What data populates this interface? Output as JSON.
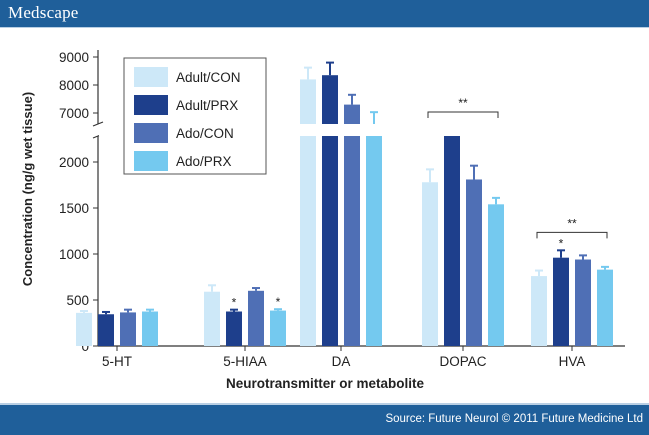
{
  "brand": "Medscape",
  "credit": "Source: Future Neurol © 2011 Future Medicine Ltd",
  "colors": {
    "brand_bar": "#1f5f9a",
    "adult_con": "#cde8f8",
    "adult_prx": "#1e3f8c",
    "ado_con": "#4f6fb5",
    "ado_prx": "#74c9ef"
  },
  "chart_data": {
    "type": "bar",
    "title": "",
    "xlabel": "Neurotransmitter or metabolite",
    "ylabel": "Concentration (ng/g wet tissue)",
    "categories": [
      "5-HT",
      "5-HIAA",
      "DA",
      "DOPAC",
      "HVA"
    ],
    "axis_break": {
      "lower_range": [
        0,
        2000
      ],
      "upper_range": [
        7000,
        9000
      ]
    },
    "lower_ticks": [
      0,
      500,
      1000,
      1500,
      2000
    ],
    "upper_ticks": [
      7000,
      8000,
      9000
    ],
    "series": [
      {
        "name": "Adult/CON",
        "color": "#cde8f8",
        "values": [
          360,
          590,
          8200,
          1780,
          760
        ],
        "errors": [
          20,
          70,
          420,
          140,
          60
        ]
      },
      {
        "name": "Adult/PRX",
        "color": "#1e3f8c",
        "values": [
          345,
          375,
          8350,
          2060,
          960
        ],
        "errors": [
          25,
          20,
          450,
          130,
          80
        ]
      },
      {
        "name": "Ado/CON",
        "color": "#4f6fb5",
        "values": [
          365,
          600,
          7300,
          1810,
          940
        ],
        "errors": [
          30,
          30,
          350,
          150,
          45
        ]
      },
      {
        "name": "Ado/PRX",
        "color": "#74c9ef",
        "values": [
          375,
          385,
          6750,
          1540,
          830
        ],
        "errors": [
          20,
          15,
          280,
          70,
          30
        ]
      }
    ],
    "annotations": [
      {
        "category": "5-HIAA",
        "series": "Adult/PRX",
        "text": "*"
      },
      {
        "category": "5-HIAA",
        "series": "Ado/PRX",
        "text": "*"
      },
      {
        "category": "HVA",
        "series": "Adult/PRX",
        "text": "*"
      },
      {
        "category": "DOPAC",
        "bracket": true,
        "text": "**"
      },
      {
        "category": "HVA",
        "bracket": true,
        "text": "**"
      }
    ],
    "legend_position": "top-left",
    "grid": false
  }
}
